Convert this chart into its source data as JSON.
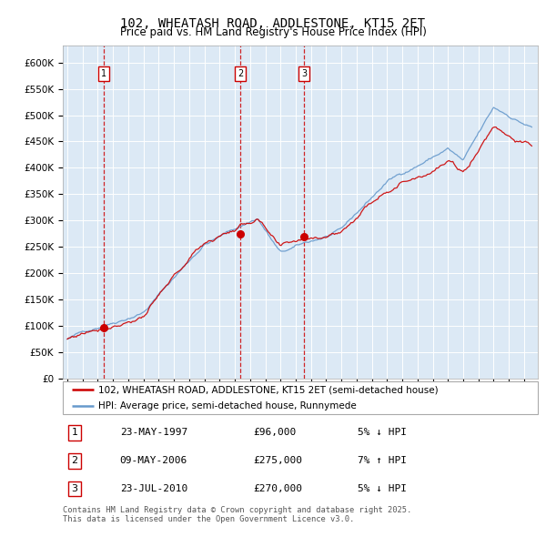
{
  "title": "102, WHEATASH ROAD, ADDLESTONE, KT15 2ET",
  "subtitle": "Price paid vs. HM Land Registry's House Price Index (HPI)",
  "background_color": "#dce9f5",
  "grid_color": "#ffffff",
  "line_color_red": "#cc0000",
  "line_color_blue": "#6699cc",
  "transaction_dates": [
    1997.389,
    2006.356,
    2010.556
  ],
  "transaction_prices": [
    96000,
    275000,
    270000
  ],
  "transaction_labels": [
    "1",
    "2",
    "3"
  ],
  "legend_red_label": "102, WHEATASH ROAD, ADDLESTONE, KT15 2ET (semi-detached house)",
  "legend_blue_label": "HPI: Average price, semi-detached house, Runnymede",
  "footer_text": "Contains HM Land Registry data © Crown copyright and database right 2025.\nThis data is licensed under the Open Government Licence v3.0.",
  "table_rows": [
    [
      "1",
      "23-MAY-1997",
      "£96,000",
      "5% ↓ HPI"
    ],
    [
      "2",
      "09-MAY-2006",
      "£275,000",
      "7% ↑ HPI"
    ],
    [
      "3",
      "23-JUL-2010",
      "£270,000",
      "5% ↓ HPI"
    ]
  ]
}
